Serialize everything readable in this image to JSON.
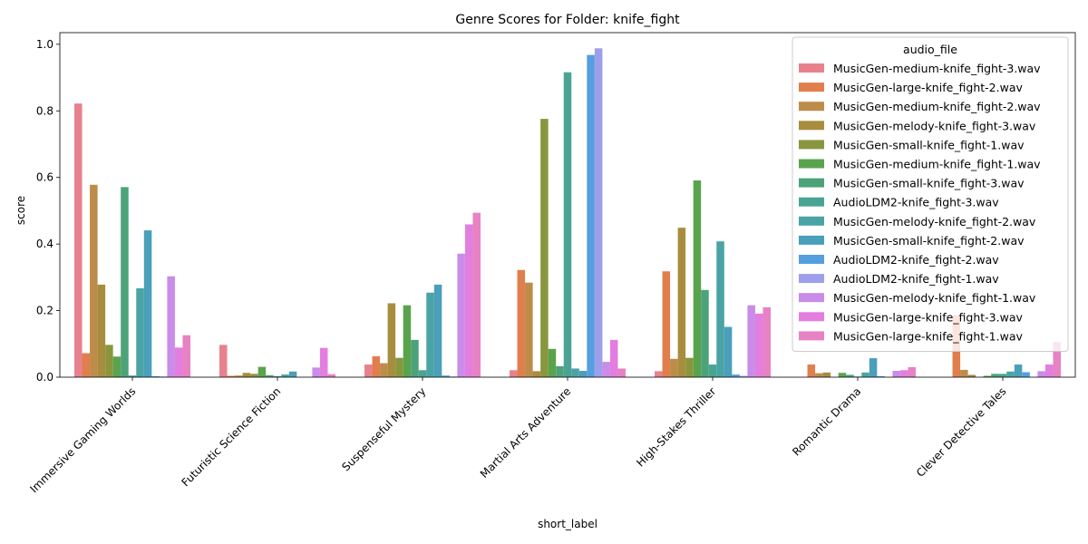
{
  "chart_data": {
    "type": "bar",
    "title": "Genre Scores for Folder: knife_fight",
    "xlabel": "short_label",
    "ylabel": "score",
    "ylim": [
      0,
      1.035
    ],
    "yticks": [
      0.0,
      0.2,
      0.4,
      0.6,
      0.8,
      1.0
    ],
    "ytick_labels": [
      "0.0",
      "0.2",
      "0.4",
      "0.6",
      "0.8",
      "1.0"
    ],
    "legend_title": "audio_file",
    "legend_position": "top-right",
    "categories": [
      "Immersive Gaming Worlds",
      "Futuristic Science Fiction",
      "Suspenseful Mystery",
      "Martial Arts Adventure",
      "High-Stakes Thriller",
      "Romantic Drama",
      "Clever Detective Tales"
    ],
    "series": [
      {
        "name": "MusicGen-medium-knife_fight-3.wav",
        "color": "#e8818e",
        "values": [
          0.822,
          0.097,
          0.038,
          0.021,
          0.018,
          0.0,
          0.0
        ]
      },
      {
        "name": "MusicGen-large-knife_fight-2.wav",
        "color": "#e07e4c",
        "values": [
          0.072,
          0.004,
          0.063,
          0.322,
          0.318,
          0.038,
          0.186
        ]
      },
      {
        "name": "MusicGen-medium-knife_fight-2.wav",
        "color": "#be8c4a",
        "values": [
          0.578,
          0.005,
          0.042,
          0.284,
          0.055,
          0.012,
          0.022
        ]
      },
      {
        "name": "MusicGen-melody-knife_fight-3.wav",
        "color": "#a88d3e",
        "values": [
          0.278,
          0.013,
          0.222,
          0.018,
          0.449,
          0.014,
          0.007
        ]
      },
      {
        "name": "MusicGen-small-knife_fight-1.wav",
        "color": "#8a963e",
        "values": [
          0.097,
          0.01,
          0.058,
          0.776,
          0.058,
          0.0,
          0.0
        ]
      },
      {
        "name": "MusicGen-medium-knife_fight-1.wav",
        "color": "#5aa34d",
        "values": [
          0.062,
          0.031,
          0.216,
          0.085,
          0.591,
          0.013,
          0.004
        ]
      },
      {
        "name": "MusicGen-small-knife_fight-3.wav",
        "color": "#4ca37a",
        "values": [
          0.571,
          0.006,
          0.112,
          0.033,
          0.262,
          0.007,
          0.01
        ]
      },
      {
        "name": "AudioLDM2-knife_fight-3.wav",
        "color": "#4aa493",
        "values": [
          0.005,
          0.003,
          0.021,
          0.916,
          0.038,
          0.002,
          0.01
        ]
      },
      {
        "name": "MusicGen-melody-knife_fight-2.wav",
        "color": "#4aa3a4",
        "values": [
          0.267,
          0.008,
          0.254,
          0.026,
          0.408,
          0.014,
          0.017
        ]
      },
      {
        "name": "MusicGen-small-knife_fight-2.wav",
        "color": "#4a9fba",
        "values": [
          0.441,
          0.017,
          0.278,
          0.019,
          0.151,
          0.057,
          0.038
        ]
      },
      {
        "name": "AudioLDM2-knife_fight-2.wav",
        "color": "#559ee0",
        "values": [
          0.003,
          0.0,
          0.005,
          0.968,
          0.008,
          0.003,
          0.015
        ]
      },
      {
        "name": "AudioLDM2-knife_fight-1.wav",
        "color": "#9e9fea",
        "values": [
          0.002,
          0.0,
          0.002,
          0.988,
          0.004,
          0.0,
          0.0
        ]
      },
      {
        "name": "MusicGen-melody-knife_fight-1.wav",
        "color": "#c98ce9",
        "values": [
          0.303,
          0.029,
          0.371,
          0.046,
          0.216,
          0.019,
          0.018
        ]
      },
      {
        "name": "MusicGen-large-knife_fight-3.wav",
        "color": "#e37ee0",
        "values": [
          0.089,
          0.088,
          0.459,
          0.112,
          0.191,
          0.021,
          0.038
        ]
      },
      {
        "name": "MusicGen-large-knife_fight-1.wav",
        "color": "#e782c4",
        "values": [
          0.126,
          0.009,
          0.494,
          0.026,
          0.21,
          0.03,
          0.106
        ]
      }
    ]
  }
}
